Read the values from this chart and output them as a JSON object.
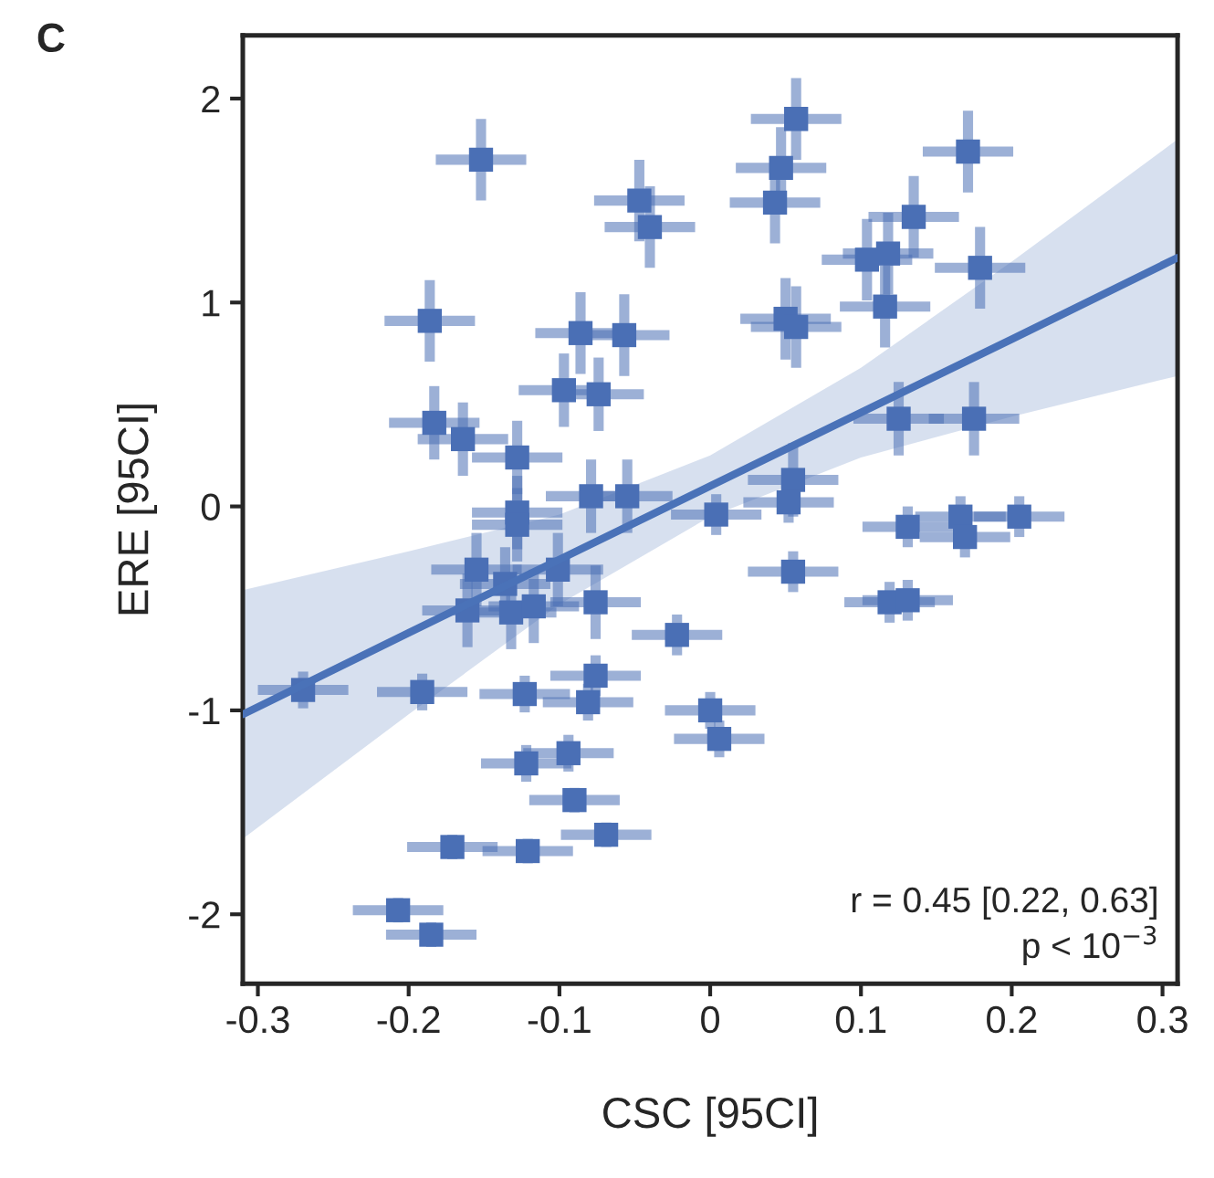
{
  "chart_data": {
    "type": "scatter",
    "title": "C",
    "xlabel": "CSC [95CI]",
    "ylabel": "ERE [95CI]",
    "xlim": [
      -0.31,
      0.31
    ],
    "ylim": [
      -2.34,
      2.31
    ],
    "xticks": [
      -0.3,
      -0.2,
      -0.1,
      0,
      0.1,
      0.2,
      0.3
    ],
    "yticks": [
      -2,
      -1,
      0,
      1,
      2
    ],
    "grid": false,
    "legend": false,
    "annotations": [
      "r = 0.45 [0.22, 0.63]",
      "p < 10$^{−3}$"
    ],
    "series": [
      {
        "color": "#4a6fb5",
        "marker": "square",
        "x": [
          -0.152,
          -0.047,
          -0.04,
          -0.186,
          -0.086,
          -0.057,
          -0.097,
          -0.074,
          -0.183,
          -0.164,
          -0.128,
          -0.128,
          -0.128,
          -0.079,
          -0.055,
          0.004,
          -0.155,
          -0.136,
          -0.101,
          -0.161,
          -0.132,
          -0.117,
          -0.076,
          -0.022,
          -0.27,
          -0.191,
          -0.123,
          -0.076,
          -0.081,
          0.0,
          0.006,
          -0.122,
          -0.094,
          -0.09,
          -0.069,
          -0.171,
          -0.121,
          -0.207,
          -0.185,
          0.057,
          0.047,
          0.043,
          0.171,
          0.135,
          0.118,
          0.104,
          0.179,
          0.116,
          0.05,
          0.057,
          0.125,
          0.175,
          0.055,
          0.052,
          0.131,
          0.166,
          0.169,
          0.205,
          0.055,
          0.119,
          0.131
        ],
        "values": [
          1.7,
          1.5,
          1.37,
          0.91,
          0.85,
          0.84,
          0.57,
          0.55,
          0.41,
          0.33,
          0.24,
          -0.03,
          -0.09,
          0.05,
          0.05,
          -0.04,
          -0.31,
          -0.38,
          -0.31,
          -0.51,
          -0.52,
          -0.49,
          -0.47,
          -0.63,
          -0.9,
          -0.91,
          -0.92,
          -0.83,
          -0.96,
          -1.0,
          -1.14,
          -1.26,
          -1.21,
          -1.44,
          -1.61,
          -1.67,
          -1.69,
          -1.98,
          -2.1,
          1.9,
          1.66,
          1.49,
          1.74,
          1.42,
          1.24,
          1.21,
          1.17,
          0.98,
          0.92,
          0.88,
          0.43,
          0.43,
          0.13,
          0.02,
          -0.1,
          -0.05,
          -0.15,
          -0.05,
          -0.32,
          -0.47,
          -0.46
        ],
        "xerrors": [
          0.03,
          0.03,
          0.03,
          0.03,
          0.03,
          0.03,
          0.03,
          0.03,
          0.03,
          0.03,
          0.03,
          0.03,
          0.03,
          0.03,
          0.03,
          0.03,
          0.03,
          0.03,
          0.03,
          0.03,
          0.03,
          0.03,
          0.03,
          0.03,
          0.03,
          0.03,
          0.03,
          0.03,
          0.03,
          0.03,
          0.03,
          0.03,
          0.03,
          0.03,
          0.03,
          0.03,
          0.03,
          0.03,
          0.03,
          0.03,
          0.03,
          0.03,
          0.03,
          0.03,
          0.03,
          0.03,
          0.03,
          0.03,
          0.03,
          0.03,
          0.03,
          0.03,
          0.03,
          0.03,
          0.03,
          0.03,
          0.03,
          0.03,
          0.03,
          0.03,
          0.03
        ],
        "errors": [
          0.2,
          0.2,
          0.2,
          0.2,
          0.2,
          0.2,
          0.18,
          0.18,
          0.18,
          0.18,
          0.18,
          0.18,
          0.18,
          0.18,
          0.18,
          0.1,
          0.18,
          0.18,
          0.18,
          0.18,
          0.18,
          0.18,
          0.18,
          0.1,
          0.09,
          0.09,
          0.09,
          0.1,
          0.09,
          0.09,
          0.09,
          0.09,
          0.09,
          0.06,
          0.06,
          0.06,
          0.06,
          0.06,
          0.06,
          0.2,
          0.2,
          0.2,
          0.2,
          0.2,
          0.2,
          0.2,
          0.2,
          0.2,
          0.2,
          0.2,
          0.18,
          0.18,
          0.18,
          0.1,
          0.1,
          0.1,
          0.1,
          0.1,
          0.1,
          0.1,
          0.1
        ]
      },
      {
        "type": "line",
        "color": "#4a72b8",
        "x": [
          -0.31,
          -0.2,
          -0.1,
          0,
          0.1,
          0.2,
          0.31
        ],
        "values": [
          -1.02,
          -0.62,
          -0.26,
          0.1,
          0.46,
          0.82,
          1.22
        ],
        "lower": [
          -1.63,
          -1.02,
          -0.48,
          -0.05,
          0.24,
          0.44,
          0.64
        ],
        "upper": [
          -0.41,
          -0.22,
          -0.04,
          0.25,
          0.68,
          1.2,
          1.8
        ]
      }
    ]
  }
}
